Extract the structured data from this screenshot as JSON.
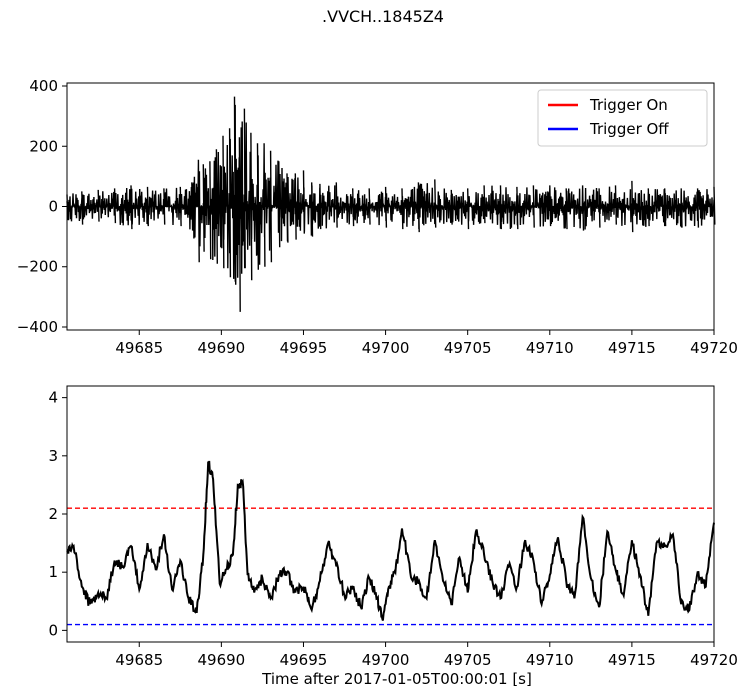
{
  "figure": {
    "title": ".VVCH..1845Z4",
    "xlabel": "Time after 2017-01-05T00:00:01 [s]"
  },
  "chart_data": [
    {
      "type": "line",
      "panel": "waveform",
      "xlim": [
        49680.6,
        49720
      ],
      "ylim": [
        -410,
        410
      ],
      "xticks": [
        49685,
        49690,
        49695,
        49700,
        49705,
        49710,
        49715,
        49720
      ],
      "xtick_labels": [
        "49685",
        "49690",
        "49695",
        "49700",
        "49705",
        "49710",
        "49715",
        "49720"
      ],
      "yticks": [
        -400,
        -200,
        0,
        200,
        400
      ],
      "ytick_labels": [
        "−400",
        "−200",
        "0",
        "200",
        "400"
      ],
      "legend": {
        "placement": "top-right",
        "entries": [
          {
            "label": "Trigger On",
            "color": "#ff0000"
          },
          {
            "label": "Trigger Off",
            "color": "#0000ff"
          }
        ]
      },
      "series": [
        {
          "color": "#000000",
          "x": [
            49680.6,
            49681.5,
            49682.5,
            49683.5,
            49684.5,
            49685.5,
            49686.5,
            49687.5,
            49688.2,
            49688.6,
            49688.9,
            49689.3,
            49689.7,
            49690.1,
            49690.5,
            49690.8,
            49691.1,
            49691.4,
            49691.8,
            49692.2,
            49692.6,
            49693.0,
            49693.5,
            49694.0,
            49694.5,
            49695.0,
            49695.5,
            49696.0,
            49697.0,
            49698.0,
            49699.0,
            49700.0,
            49701.0,
            49702.0,
            49703.0,
            49704.0,
            49705.0,
            49706.0,
            49707.0,
            49708.0,
            49709.0,
            49710.0,
            49711.0,
            49712.0,
            49713.0,
            49714.0,
            49715.0,
            49716.0,
            49717.0,
            49718.0,
            49719.0,
            49720.0
          ],
          "y_max": [
            40,
            50,
            55,
            60,
            70,
            65,
            60,
            65,
            80,
            155,
            140,
            150,
            190,
            235,
            260,
            365,
            230,
            325,
            245,
            210,
            210,
            185,
            150,
            110,
            110,
            120,
            80,
            75,
            80,
            60,
            60,
            65,
            60,
            80,
            90,
            55,
            60,
            70,
            70,
            65,
            70,
            70,
            60,
            70,
            60,
            70,
            85,
            60,
            60,
            60,
            60,
            65
          ],
          "y_min": [
            -45,
            -60,
            -50,
            -55,
            -75,
            -65,
            -60,
            -65,
            -80,
            -185,
            -150,
            -175,
            -190,
            -205,
            -235,
            -250,
            -350,
            -205,
            -245,
            -210,
            -200,
            -185,
            -135,
            -120,
            -110,
            -90,
            -100,
            -75,
            -70,
            -65,
            -60,
            -70,
            -75,
            -85,
            -70,
            -60,
            -75,
            -55,
            -75,
            -75,
            -70,
            -65,
            -75,
            -80,
            -70,
            -60,
            -85,
            -65,
            -65,
            -70,
            -70,
            -60
          ]
        }
      ]
    },
    {
      "type": "line",
      "panel": "characteristic-function",
      "xlim": [
        49680.6,
        49720
      ],
      "ylim": [
        -0.2,
        4.2
      ],
      "xticks": [
        49685,
        49690,
        49695,
        49700,
        49705,
        49710,
        49715,
        49720
      ],
      "xtick_labels": [
        "49685",
        "49690",
        "49695",
        "49700",
        "49705",
        "49710",
        "49715",
        "49720"
      ],
      "yticks": [
        0,
        1,
        2,
        3,
        4
      ],
      "ytick_labels": [
        "0",
        "1",
        "2",
        "3",
        "4"
      ],
      "thresholds": [
        {
          "label": "Trigger On",
          "value": 2.1,
          "color": "#ff0000",
          "style": "dashed"
        },
        {
          "label": "Trigger Off",
          "value": 0.1,
          "color": "#0000ff",
          "style": "dashed"
        }
      ],
      "series": [
        {
          "color": "#000000",
          "x": [
            49680.6,
            49681.0,
            49681.5,
            49682.0,
            49682.5,
            49683.0,
            49683.5,
            49684.0,
            49684.5,
            49685.0,
            49685.5,
            49686.0,
            49686.5,
            49687.0,
            49687.5,
            49688.0,
            49688.5,
            49688.9,
            49689.2,
            49689.5,
            49689.9,
            49690.3,
            49690.7,
            49691.0,
            49691.3,
            49691.6,
            49692.0,
            49692.5,
            49693.0,
            49693.5,
            49694.0,
            49694.5,
            49695.0,
            49695.5,
            49696.0,
            49696.5,
            49697.0,
            49697.5,
            49698.0,
            49698.5,
            49699.0,
            49699.5,
            49699.8,
            49700.2,
            49700.6,
            49701.0,
            49701.5,
            49702.0,
            49702.5,
            49703.0,
            49703.5,
            49704.0,
            49704.5,
            49705.0,
            49705.5,
            49706.0,
            49706.5,
            49707.0,
            49707.5,
            49708.0,
            49708.5,
            49709.0,
            49709.5,
            49710.0,
            49710.5,
            49711.0,
            49711.5,
            49712.0,
            49712.5,
            49713.0,
            49713.5,
            49714.0,
            49714.5,
            49715.0,
            49715.5,
            49716.0,
            49716.5,
            49717.0,
            49717.5,
            49718.0,
            49718.5,
            49719.0,
            49719.5,
            49720.0
          ],
          "y": [
            1.35,
            1.45,
            0.75,
            0.45,
            0.65,
            0.55,
            1.2,
            1.1,
            1.45,
            0.7,
            1.5,
            1.05,
            1.65,
            0.7,
            1.2,
            0.55,
            0.3,
            1.3,
            2.9,
            2.6,
            0.8,
            1.05,
            1.3,
            2.5,
            2.55,
            0.95,
            0.65,
            0.9,
            0.55,
            0.95,
            1.0,
            0.65,
            0.75,
            0.35,
            0.85,
            1.5,
            1.1,
            0.6,
            0.75,
            0.4,
            0.9,
            0.55,
            0.2,
            0.75,
            1.0,
            1.75,
            1.0,
            0.8,
            0.55,
            1.55,
            0.85,
            0.45,
            1.25,
            0.65,
            1.7,
            1.3,
            0.85,
            0.55,
            1.1,
            0.75,
            1.55,
            1.2,
            0.45,
            0.95,
            1.6,
            0.85,
            0.55,
            1.95,
            0.9,
            0.4,
            1.7,
            1.05,
            0.6,
            1.55,
            0.95,
            0.25,
            1.5,
            1.45,
            1.65,
            0.45,
            0.35,
            1.0,
            0.75,
            1.85
          ]
        }
      ]
    }
  ]
}
